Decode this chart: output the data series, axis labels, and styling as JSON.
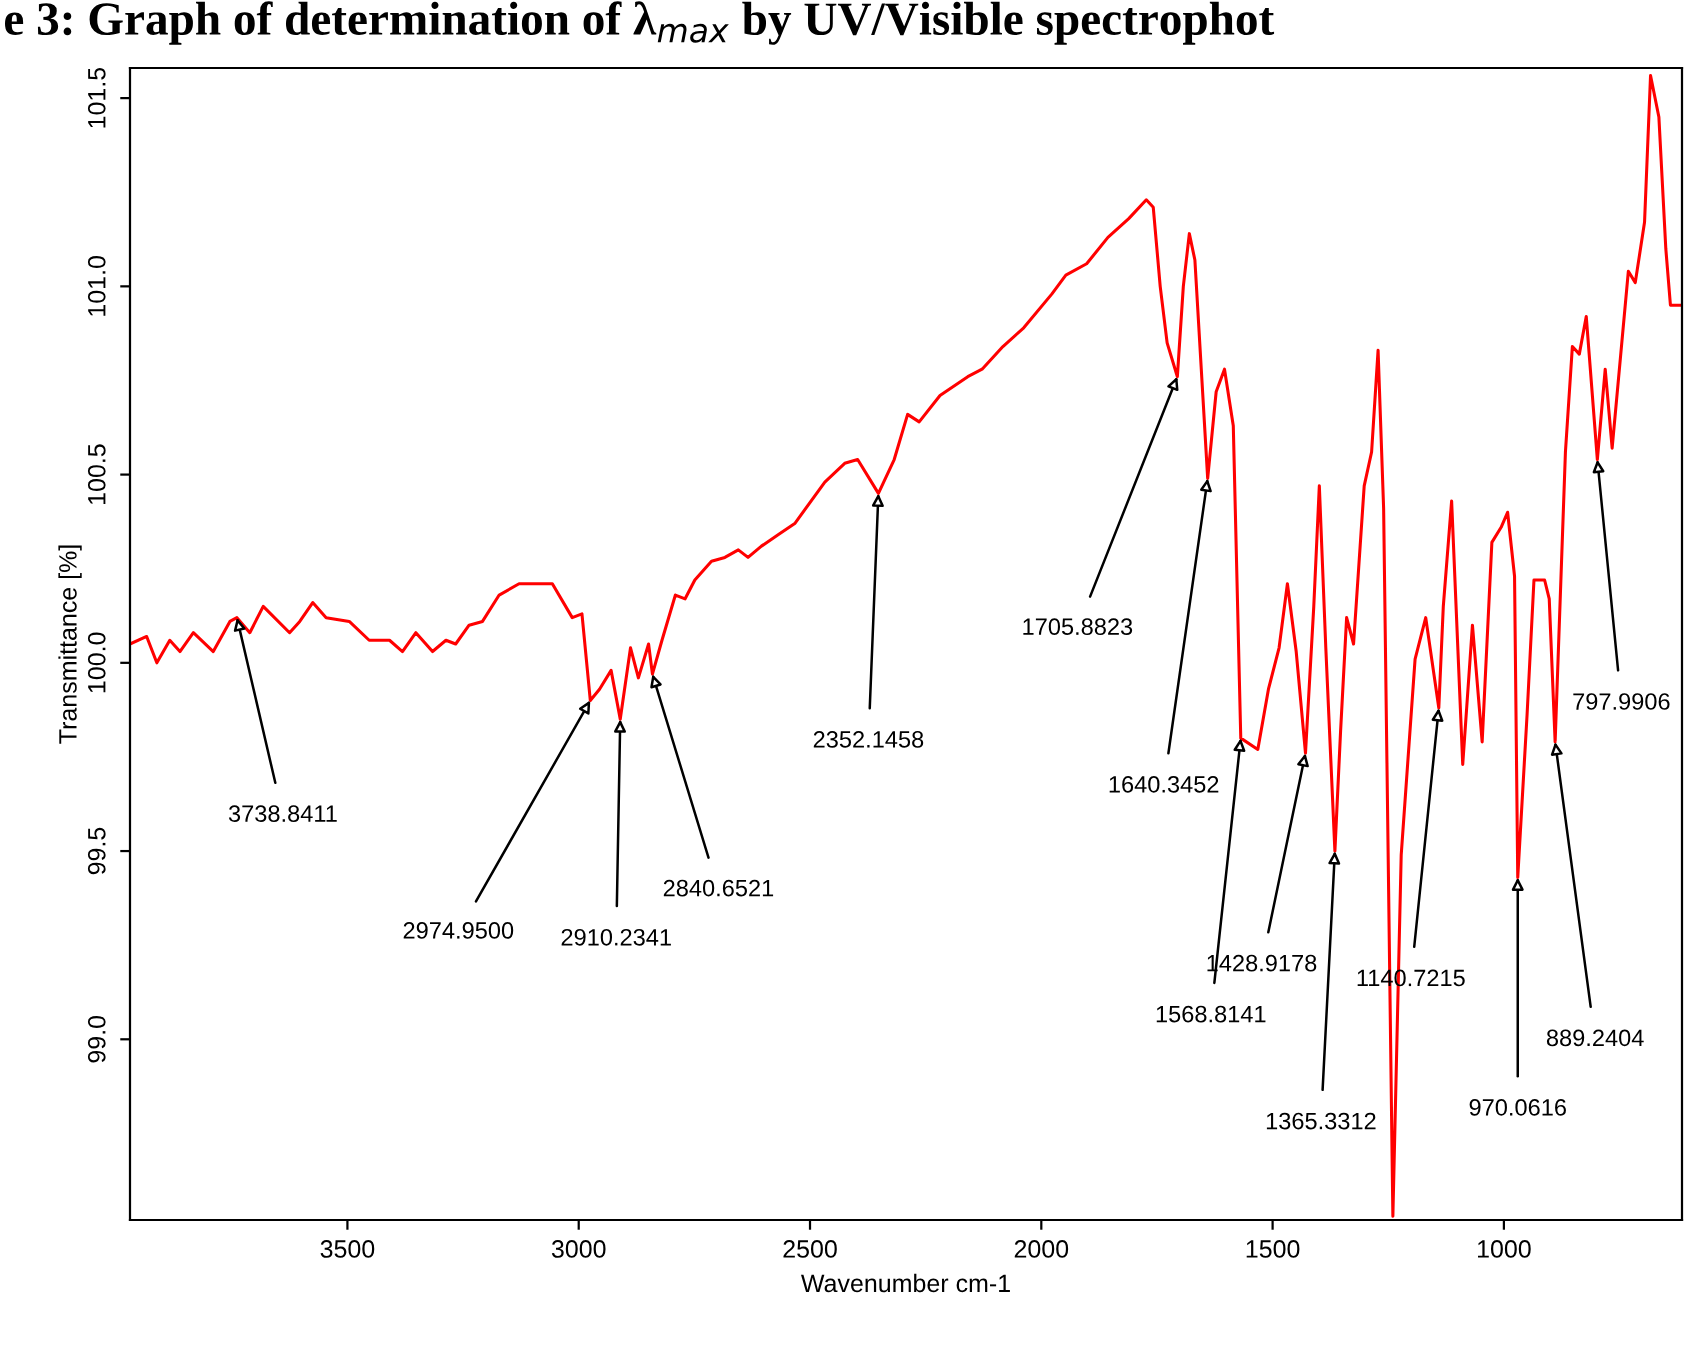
{
  "chart_data": {
    "type": "line",
    "title": "e 3: Graph of determination of λ$_{max}$ by UV/Visible spectrophot",
    "xlabel": "Wavenumber cm-1",
    "ylabel": "Transmittance [%]",
    "x": [
      3970,
      3934,
      3912,
      3884,
      3862,
      3833,
      3790,
      3754,
      3738.8411,
      3711,
      3682,
      3625,
      3603,
      3575,
      3546,
      3496,
      3453,
      3409,
      3381,
      3352,
      3316,
      3287,
      3266,
      3237,
      3208,
      3172,
      3129,
      3057,
      3014,
      2993,
      2974.95,
      2955,
      2930,
      2910.2341,
      2888,
      2871,
      2849,
      2840.6521,
      2820,
      2791,
      2770,
      2749,
      2713,
      2684,
      2655,
      2634,
      2605,
      2569,
      2533,
      2468,
      2425,
      2397,
      2352.1458,
      2318,
      2289,
      2264,
      2219,
      2159,
      2128,
      2083,
      2038,
      1977,
      1947,
      1902,
      1856,
      1811,
      1773,
      1758,
      1743,
      1728,
      1705.8823,
      1693,
      1680,
      1668,
      1640.3452,
      1622,
      1604,
      1585,
      1568.8141,
      1532,
      1509,
      1486,
      1468,
      1449,
      1428.9178,
      1411,
      1399,
      1385,
      1365.3312,
      1353,
      1340,
      1325,
      1302,
      1286,
      1272,
      1260,
      1240,
      1222,
      1192,
      1169,
      1140.7215,
      1131,
      1113,
      1089,
      1068,
      1047,
      1026,
      1006,
      992,
      977,
      970.0616,
      950,
      935,
      912,
      902,
      889.2404,
      867,
      852,
      837,
      822,
      797.9906,
      781,
      766,
      731,
      716,
      696,
      683,
      665,
      650,
      640,
      620
    ],
    "series": [
      {
        "color": "#ff0000",
        "values": [
          100.05,
          100.07,
          100.0,
          100.06,
          100.03,
          100.08,
          100.03,
          100.11,
          100.12,
          100.08,
          100.15,
          100.08,
          100.11,
          100.16,
          100.12,
          100.11,
          100.06,
          100.06,
          100.03,
          100.08,
          100.03,
          100.06,
          100.05,
          100.1,
          100.11,
          100.18,
          100.21,
          100.21,
          100.12,
          100.13,
          99.9,
          99.93,
          99.98,
          99.85,
          100.04,
          99.96,
          100.05,
          99.97,
          100.06,
          100.18,
          100.17,
          100.22,
          100.27,
          100.28,
          100.3,
          100.28,
          100.31,
          100.34,
          100.37,
          100.48,
          100.53,
          100.54,
          100.45,
          100.54,
          100.66,
          100.64,
          100.71,
          100.76,
          100.78,
          100.84,
          100.89,
          100.98,
          101.03,
          101.06,
          101.13,
          101.18,
          101.23,
          101.21,
          101.0,
          100.85,
          100.76,
          101.0,
          101.14,
          101.07,
          100.49,
          100.72,
          100.78,
          100.63,
          99.8,
          99.77,
          99.93,
          100.04,
          100.21,
          100.03,
          99.76,
          100.15,
          100.47,
          100.04,
          99.5,
          99.82,
          100.12,
          100.05,
          100.47,
          100.56,
          100.83,
          100.41,
          98.53,
          99.49,
          100.01,
          100.12,
          99.88,
          100.15,
          100.43,
          99.73,
          100.1,
          99.79,
          100.32,
          100.36,
          100.4,
          100.23,
          99.43,
          99.86,
          100.22,
          100.22,
          100.17,
          99.79,
          100.56,
          100.84,
          100.82,
          100.92,
          100.54,
          100.78,
          100.57,
          101.04,
          101.01,
          101.17,
          101.56,
          101.45,
          101.1,
          100.95,
          100.95
        ]
      }
    ],
    "xlim": [
      3970,
      615
    ],
    "ylim": [
      98.52,
      101.58
    ],
    "xticks": [
      3500,
      3000,
      2500,
      2000,
      1500,
      1000
    ],
    "yticks": [
      {
        "value": 99,
        "label": "99.0"
      },
      99.5,
      {
        "value": 100,
        "label": "100.0"
      },
      100.5,
      {
        "value": 101,
        "label": "101.0"
      },
      101.5
    ],
    "grid": false,
    "legend": false,
    "marker": "none",
    "line_style": "solid",
    "annotations": [
      {
        "text": "3738.8411",
        "x": 3738.8411,
        "y": 100.12
      },
      {
        "text": "2974.9500",
        "x": 2974.95,
        "y": 99.9
      },
      {
        "text": "2910.2341",
        "x": 2910.2341,
        "y": 99.85
      },
      {
        "text": "2840.6521",
        "x": 2840.6521,
        "y": 99.97
      },
      {
        "text": "2352.1458",
        "x": 2352.1458,
        "y": 100.45
      },
      {
        "text": "1705.8823",
        "x": 1705.8823,
        "y": 100.76
      },
      {
        "text": "1640.3452",
        "x": 1640.3452,
        "y": 100.49
      },
      {
        "text": "1568.8141",
        "x": 1568.8141,
        "y": 99.8
      },
      {
        "text": "1428.9178",
        "x": 1428.9178,
        "y": 99.76
      },
      {
        "text": "1365.3312",
        "x": 1365.3312,
        "y": 99.5
      },
      {
        "text": "1140.7215",
        "x": 1140.7215,
        "y": 99.88
      },
      {
        "text": "970.0616",
        "x": 970.0616,
        "y": 99.43
      },
      {
        "text": "889.2404",
        "x": 889.2404,
        "y": 99.79
      },
      {
        "text": "797.9906",
        "x": 797.9906,
        "y": 100.54
      }
    ]
  }
}
